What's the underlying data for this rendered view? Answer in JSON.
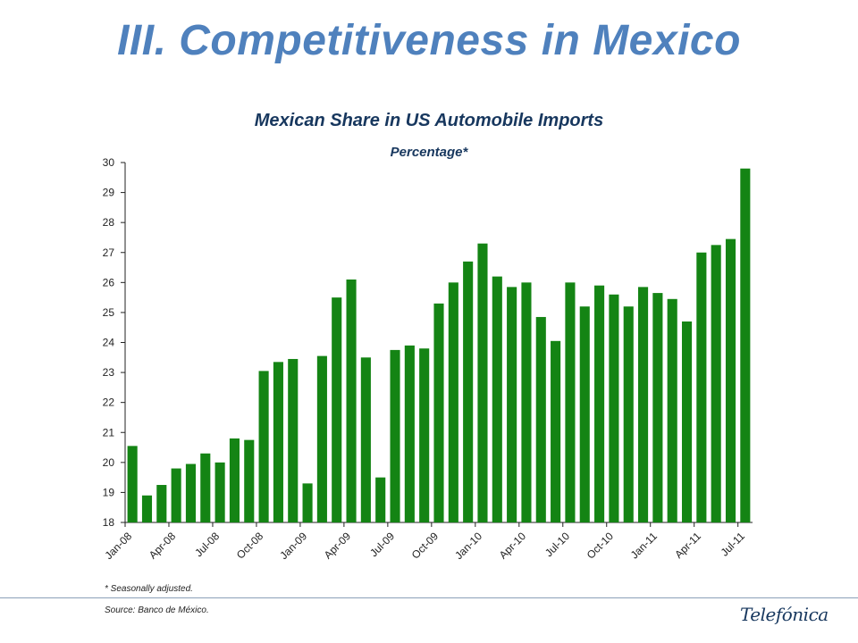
{
  "slide": {
    "title": "III. Competitiveness in Mexico",
    "footnote": "* Seasonally adjusted.",
    "source": "Source: Banco de México.",
    "logo_text": "Telefónica"
  },
  "colors": {
    "bar": "#148414",
    "title": "#4f81bd",
    "chart_title": "#17375e"
  },
  "chart_data": {
    "type": "bar",
    "title": "Mexican Share in US Automobile Imports",
    "subtitle": "Percentage*",
    "xlabel": "",
    "ylabel": "",
    "ylim": [
      18,
      30
    ],
    "yticks": [
      18,
      19,
      20,
      21,
      22,
      23,
      24,
      25,
      26,
      27,
      28,
      29,
      30
    ],
    "grid": false,
    "categories": [
      "Jan-08",
      "Feb-08",
      "Mar-08",
      "Apr-08",
      "May-08",
      "Jun-08",
      "Jul-08",
      "Aug-08",
      "Sep-08",
      "Oct-08",
      "Nov-08",
      "Dec-08",
      "Jan-09",
      "Feb-09",
      "Mar-09",
      "Apr-09",
      "May-09",
      "Jun-09",
      "Jul-09",
      "Aug-09",
      "Sep-09",
      "Oct-09",
      "Nov-09",
      "Dec-09",
      "Jan-10",
      "Feb-10",
      "Mar-10",
      "Apr-10",
      "May-10",
      "Jun-10",
      "Jul-10",
      "Aug-10",
      "Sep-10",
      "Oct-10",
      "Nov-10",
      "Dec-10",
      "Jan-11",
      "Feb-11",
      "Mar-11",
      "Apr-11",
      "May-11",
      "Jun-11",
      "Jul-11"
    ],
    "xtick_labels": [
      "Jan-08",
      "Apr-08",
      "Jul-08",
      "Oct-08",
      "Jan-09",
      "Apr-09",
      "Jul-09",
      "Oct-09",
      "Jan-10",
      "Apr-10",
      "Jul-10",
      "Oct-10",
      "Jan-11",
      "Apr-11",
      "Jul-11"
    ],
    "values": [
      20.55,
      18.9,
      19.25,
      19.8,
      19.95,
      20.3,
      20.0,
      20.8,
      20.75,
      23.05,
      23.35,
      23.45,
      19.3,
      23.55,
      25.5,
      26.1,
      23.5,
      19.5,
      23.75,
      23.9,
      23.8,
      25.3,
      26.0,
      26.7,
      27.3,
      26.2,
      25.85,
      26.0,
      24.85,
      24.05,
      26.0,
      25.2,
      25.9,
      25.6,
      25.2,
      25.85,
      25.65,
      25.45,
      24.7,
      27.0,
      27.25,
      27.45,
      29.8
    ]
  }
}
